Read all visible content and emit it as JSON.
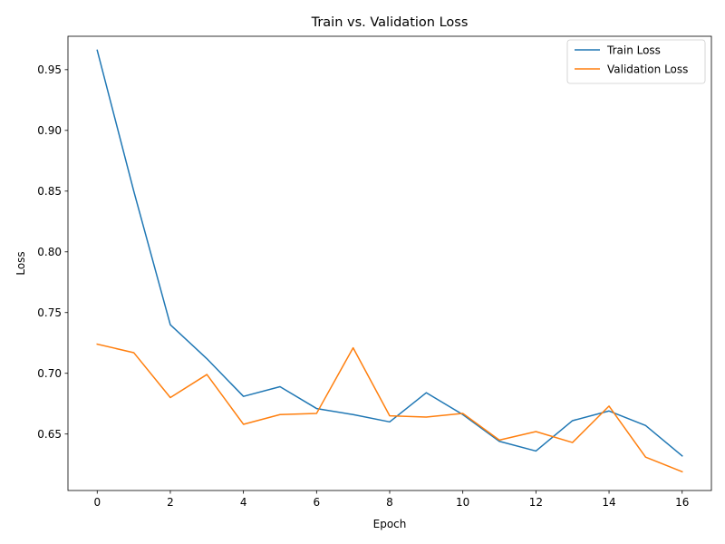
{
  "chart_data": {
    "type": "line",
    "title": "Train vs. Validation Loss",
    "xlabel": "Epoch",
    "ylabel": "Loss",
    "x": [
      0,
      1,
      2,
      3,
      4,
      5,
      6,
      7,
      8,
      9,
      10,
      11,
      12,
      13,
      14,
      15,
      16
    ],
    "xlim": [
      -0.8,
      16.8
    ],
    "ylim": [
      0.6035,
      0.9775
    ],
    "xticks": [
      0,
      2,
      4,
      6,
      8,
      10,
      12,
      14,
      16
    ],
    "xtick_labels": [
      "0",
      "2",
      "4",
      "6",
      "8",
      "10",
      "12",
      "14",
      "16"
    ],
    "yticks": [
      0.65,
      0.7,
      0.75,
      0.8,
      0.85,
      0.9,
      0.95
    ],
    "ytick_labels": [
      "0.65",
      "0.70",
      "0.75",
      "0.80",
      "0.85",
      "0.90",
      "0.95"
    ],
    "grid": false,
    "legend_position": "top-right",
    "series": [
      {
        "name": "Train Loss",
        "color": "#1f77b4",
        "values": [
          0.966,
          0.85,
          0.74,
          0.712,
          0.681,
          0.689,
          0.671,
          0.666,
          0.66,
          0.684,
          0.666,
          0.644,
          0.636,
          0.661,
          0.669,
          0.657,
          0.632
        ]
      },
      {
        "name": "Validation Loss",
        "color": "#ff7f0e",
        "values": [
          0.724,
          0.717,
          0.68,
          0.699,
          0.658,
          0.666,
          0.667,
          0.721,
          0.665,
          0.664,
          0.667,
          0.645,
          0.652,
          0.643,
          0.673,
          0.631,
          0.619
        ]
      }
    ]
  }
}
